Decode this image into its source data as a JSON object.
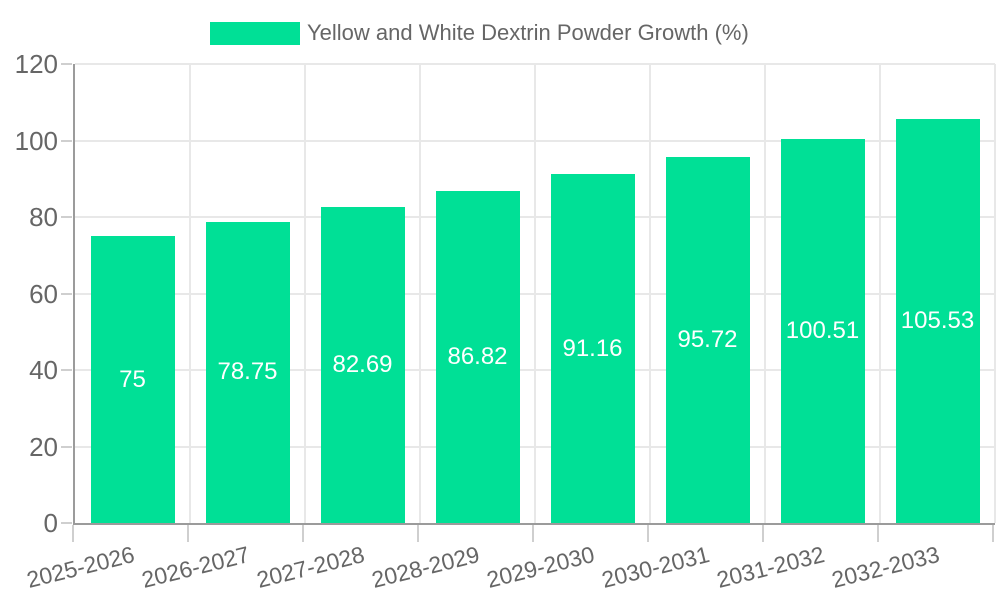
{
  "legend": {
    "label": "Yellow and White Dextrin Powder Growth (%)"
  },
  "chart_data": {
    "type": "bar",
    "title": "Yellow and White Dextrin Powder Growth (%)",
    "categories": [
      "2025-2026",
      "2026-2027",
      "2027-2028",
      "2028-2029",
      "2029-2030",
      "2030-2031",
      "2031-2032",
      "2032-2033"
    ],
    "series": [
      {
        "name": "Yellow and White Dextrin Powder Growth (%)",
        "values": [
          75,
          78.75,
          82.69,
          86.82,
          91.16,
          95.72,
          100.51,
          105.53
        ],
        "value_labels": [
          "75",
          "78.75",
          "82.69",
          "86.82",
          "91.16",
          "95.72",
          "100.51",
          "105.53"
        ]
      }
    ],
    "xlabel": "",
    "ylabel": "",
    "ylim": [
      0,
      120
    ],
    "yticks": [
      0,
      20,
      40,
      60,
      80,
      100,
      120
    ],
    "grid": true,
    "legend_position": "top",
    "value_labels_position": "center-inside"
  },
  "colors": {
    "bar": "#00E096",
    "grid": "#e8e8e8",
    "axis": "#9b9b9b",
    "tick": "#cfcfcf",
    "text": "#666666",
    "value_label": "#ffffff"
  }
}
